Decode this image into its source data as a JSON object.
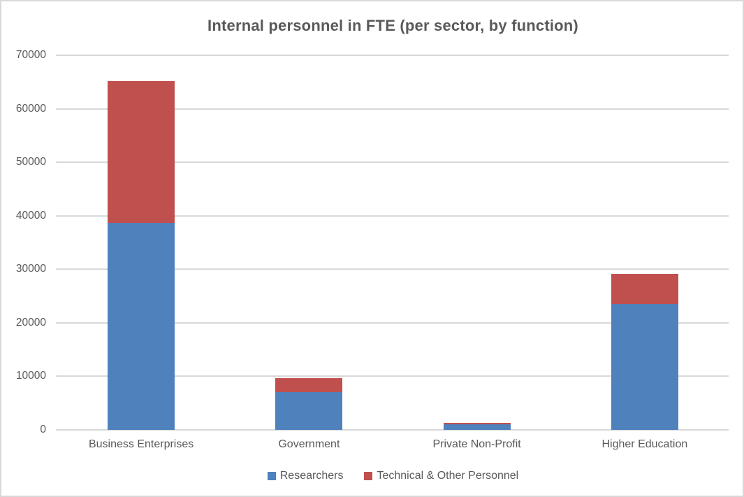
{
  "chart_data": {
    "type": "bar",
    "stacked": true,
    "title": "Internal personnel in FTE (per sector, by function)",
    "categories": [
      "Business Enterprises",
      "Government",
      "Private Non-Profit",
      "Higher Education"
    ],
    "series": [
      {
        "name": "Researchers",
        "color": "#4F81BD",
        "values": [
          38600,
          7100,
          1000,
          23500
        ]
      },
      {
        "name": "Technical & Other Personnel",
        "color": "#C0504D",
        "values": [
          26600,
          2600,
          250,
          5700
        ]
      }
    ],
    "xlabel": "",
    "ylabel": "",
    "ylim": [
      0,
      70000
    ],
    "ytick_step": 10000,
    "ytick_labels": [
      "0",
      "10000",
      "20000",
      "30000",
      "40000",
      "50000",
      "60000",
      "70000"
    ],
    "grid": true,
    "legend_position": "bottom"
  },
  "styles": {
    "text_color": "#595959",
    "gridline_color": "#D9D9D9",
    "border_color": "#D9D9D9",
    "background": "#FFFFFF"
  }
}
